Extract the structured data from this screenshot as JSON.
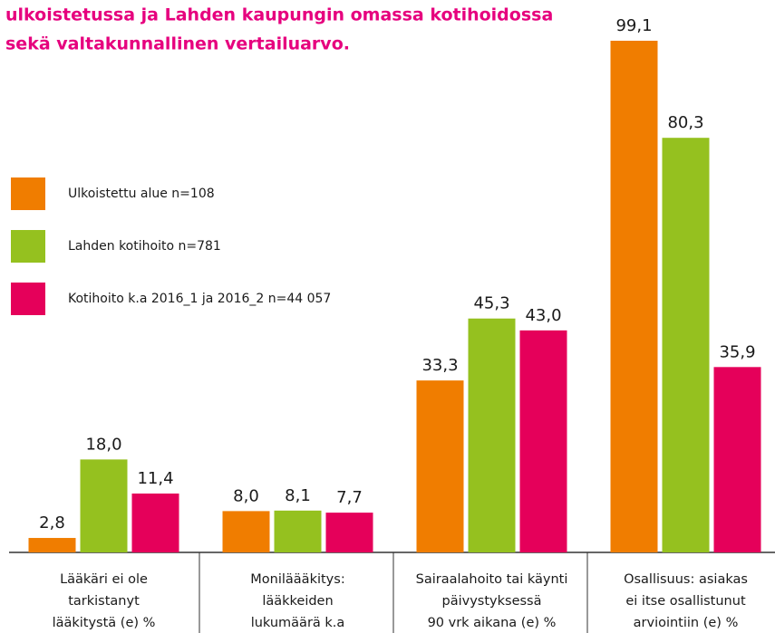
{
  "chart_data": {
    "type": "bar",
    "title": [
      "ulkoistetussa ja Lahden kaupungin omassa kotihoidossa",
      "sekä valtakunnallinen vertailuarvo."
    ],
    "categories": [
      [
        "Lääkäri ei ole",
        "tarkistanyt",
        "lääkitystä (e) %"
      ],
      [
        "Moniläääkitys:",
        "lääkkeiden",
        "lukumäärä k.a"
      ],
      [
        "Sairaalahoito tai käynti",
        "päivystyksessä",
        "90 vrk aikana (e) %"
      ],
      [
        "Osallisuus: asiakas",
        "ei itse osallistunut",
        "arviointiin (e) %"
      ]
    ],
    "series": [
      {
        "name": "Ulkoistettu alue n=108",
        "color": "#f07d00",
        "values": [
          2.8,
          8.0,
          33.3,
          99.1
        ],
        "value_labels": [
          "2,8",
          "8,0",
          "33,3",
          "99,1"
        ]
      },
      {
        "name": "Lahden kotihoito n=781",
        "color": "#95c11f",
        "values": [
          18.0,
          8.1,
          45.3,
          80.3
        ],
        "value_labels": [
          "18,0",
          "8,1",
          "45,3",
          "80,3"
        ]
      },
      {
        "name": "Kotihoito k.a 2016_1 ja 2016_2 n=44 057",
        "color": "#e5005a",
        "values": [
          11.4,
          7.7,
          43.0,
          35.9
        ],
        "value_labels": [
          "11,4",
          "7,7",
          "43,0",
          "35,9"
        ]
      }
    ],
    "legend": "left"
  }
}
